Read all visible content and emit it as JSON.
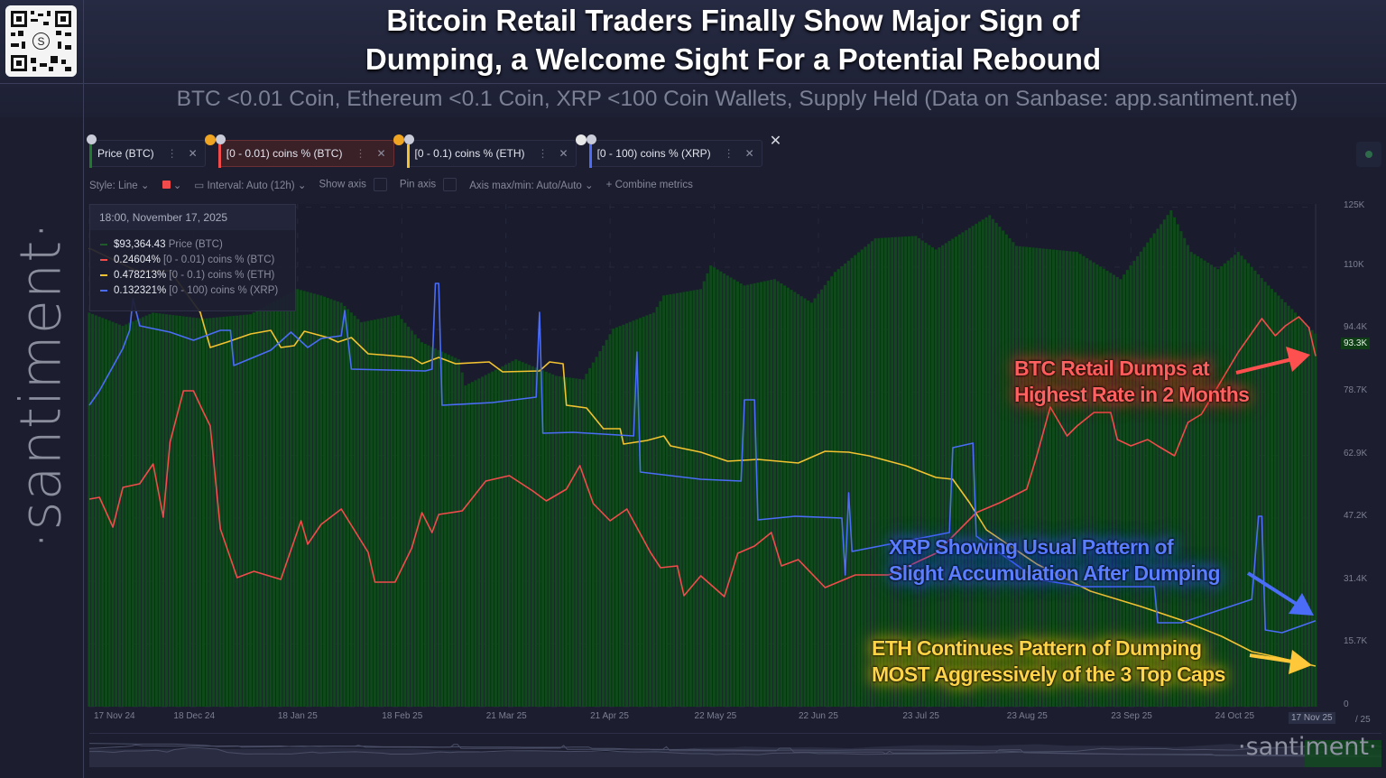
{
  "header": {
    "title_line1": "Bitcoin Retail Traders Finally Show Major Sign of",
    "title_line2": "Dumping, a Welcome Sight For a Potential Rebound",
    "subtitle": "BTC <0.01 Coin, Ethereum <0.1 Coin, XRP <100 Coin Wallets, Supply Held (Data on Sanbase: app.santiment.net)"
  },
  "brand": {
    "sidebar": "·santiment·",
    "watermark": "·santiment·"
  },
  "tabs": [
    {
      "label": "Price (BTC)",
      "color": "#1f7a2e"
    },
    {
      "label": "[0 - 0.01) coins % (BTC)",
      "color": "#f24b4b",
      "active": true
    },
    {
      "label": "[0 - 0.1) coins % (ETH)",
      "color": "#f2c230"
    },
    {
      "label": "[0 - 100) coins % (XRP)",
      "color": "#4a6cf7"
    }
  ],
  "toolbar": {
    "style": "Style: Line",
    "interval": "Interval: Auto (12h)",
    "show_axis": "Show axis",
    "pin_axis": "Pin axis",
    "axis_minmax": "Axis max/min: Auto/Auto",
    "combine": "Combine metrics"
  },
  "legend": {
    "date": "18:00, November 17, 2025",
    "rows": [
      {
        "value": "$93,364.43",
        "label": "Price (BTC)"
      },
      {
        "value": "0.24604%",
        "label": "[0 - 0.01) coins % (BTC)"
      },
      {
        "value": "0.478213%",
        "label": "[0 - 0.1) coins % (ETH)"
      },
      {
        "value": "0.132321%",
        "label": "[0 - 100) coins % (XRP)"
      }
    ]
  },
  "annotations": {
    "btc": [
      "BTC Retail Dumps at",
      "Highest Rate in 2 Months"
    ],
    "xrp": [
      "XRP Showing Usual Pattern of",
      "Slight Accumulation After Dumping"
    ],
    "eth": [
      "ETH Continues Pattern of Dumping",
      "MOST Aggressively of the 3 Top Caps"
    ]
  },
  "chart_data": {
    "type": "bar+line",
    "x_range": [
      "2024-11-17",
      "2025-11-17"
    ],
    "x_ticks": [
      {
        "date": "2024-11-17",
        "label": "17 Nov 24"
      },
      {
        "date": "2024-12-18",
        "label": "18 Dec 24"
      },
      {
        "date": "2025-01-18",
        "label": "18 Jan 25"
      },
      {
        "date": "2025-02-18",
        "label": "18 Feb 25"
      },
      {
        "date": "2025-03-21",
        "label": "21 Mar 25"
      },
      {
        "date": "2025-04-21",
        "label": "21 Apr 25"
      },
      {
        "date": "2025-05-22",
        "label": "22 May 25"
      },
      {
        "date": "2025-06-22",
        "label": "22 Jun 25"
      },
      {
        "date": "2025-07-23",
        "label": "23 Jul 25"
      },
      {
        "date": "2025-08-23",
        "label": "23 Aug 25"
      },
      {
        "date": "2025-09-23",
        "label": "23 Sep 25"
      },
      {
        "date": "2025-10-24",
        "label": "24 Oct 25"
      }
    ],
    "x_cursor_label": "17 Nov 25",
    "x_trailing_label": "/ 25",
    "y_ticks": [
      "125K",
      "110K",
      "94.4K",
      "78.7K",
      "62.9K",
      "47.2K",
      "31.4K",
      "15.7K",
      "0"
    ],
    "y_tick_values": [
      125000,
      110000,
      94400,
      78700,
      62900,
      47200,
      31400,
      15700,
      0
    ],
    "y_cursor_label": "93.3K",
    "ylim": [
      0,
      125800
    ],
    "series": [
      {
        "name": "Price (BTC)",
        "kind": "bar",
        "color": "#0f4a1b",
        "ylim": [
          0,
          125800
        ],
        "points": [
          [
            "2024-11-17",
            98600
          ],
          [
            "2024-11-27",
            95300
          ],
          [
            "2024-12-06",
            98600
          ],
          [
            "2024-12-21",
            97100
          ],
          [
            "2025-01-04",
            98200
          ],
          [
            "2025-01-18",
            104500
          ],
          [
            "2025-01-25",
            102900
          ],
          [
            "2025-01-31",
            101100
          ],
          [
            "2025-02-06",
            96200
          ],
          [
            "2025-02-17",
            98000
          ],
          [
            "2025-02-24",
            91200
          ],
          [
            "2025-03-07",
            86900
          ],
          [
            "2025-03-09",
            80400
          ],
          [
            "2025-03-24",
            86900
          ],
          [
            "2025-04-05",
            82800
          ],
          [
            "2025-04-13",
            81900
          ],
          [
            "2025-04-22",
            94600
          ],
          [
            "2025-05-04",
            98600
          ],
          [
            "2025-05-07",
            102900
          ],
          [
            "2025-05-18",
            104500
          ],
          [
            "2025-05-21",
            110400
          ],
          [
            "2025-05-31",
            105400
          ],
          [
            "2025-06-09",
            107000
          ],
          [
            "2025-06-20",
            101100
          ],
          [
            "2025-06-27",
            108800
          ],
          [
            "2025-07-09",
            117200
          ],
          [
            "2025-07-21",
            117800
          ],
          [
            "2025-07-27",
            114400
          ],
          [
            "2025-08-12",
            123000
          ],
          [
            "2025-08-20",
            115300
          ],
          [
            "2025-09-07",
            113800
          ],
          [
            "2025-09-20",
            107000
          ],
          [
            "2025-10-01",
            119600
          ],
          [
            "2025-10-05",
            124200
          ],
          [
            "2025-10-11",
            113800
          ],
          [
            "2025-10-19",
            109500
          ],
          [
            "2025-10-25",
            113800
          ],
          [
            "2025-11-03",
            105400
          ],
          [
            "2025-11-10",
            99500
          ],
          [
            "2025-11-17",
            93364.43
          ]
        ]
      },
      {
        "name": "[0 - 0.01) coins % (BTC)",
        "kind": "line",
        "color": "#f24b4b",
        "ylim": [
          0.2072,
          0.2629
        ],
        "points": [
          [
            "2024-11-17",
            0.2302
          ],
          [
            "2024-11-20",
            0.2304
          ],
          [
            "2024-11-24",
            0.2271
          ],
          [
            "2024-11-27",
            0.2315
          ],
          [
            "2024-12-02",
            0.2319
          ],
          [
            "2024-12-06",
            0.2341
          ],
          [
            "2024-12-09",
            0.2282
          ],
          [
            "2024-12-11",
            0.2365
          ],
          [
            "2024-12-15",
            0.2422
          ],
          [
            "2024-12-18",
            0.2422
          ],
          [
            "2024-12-21",
            0.2398
          ],
          [
            "2024-12-23",
            0.2383
          ],
          [
            "2024-12-26",
            0.2269
          ],
          [
            "2024-12-31",
            0.2215
          ],
          [
            "2025-01-05",
            0.2222
          ],
          [
            "2025-01-13",
            0.2213
          ],
          [
            "2025-01-19",
            0.2278
          ],
          [
            "2025-01-21",
            0.2252
          ],
          [
            "2025-01-25",
            0.2274
          ],
          [
            "2025-01-31",
            0.2291
          ],
          [
            "2025-02-08",
            0.2243
          ],
          [
            "2025-02-10",
            0.221
          ],
          [
            "2025-02-16",
            0.221
          ],
          [
            "2025-02-21",
            0.2248
          ],
          [
            "2025-02-24",
            0.2287
          ],
          [
            "2025-02-27",
            0.2265
          ],
          [
            "2025-03-01",
            0.2285
          ],
          [
            "2025-03-08",
            0.2289
          ],
          [
            "2025-03-15",
            0.2322
          ],
          [
            "2025-03-22",
            0.2328
          ],
          [
            "2025-03-29",
            0.2311
          ],
          [
            "2025-04-02",
            0.23
          ],
          [
            "2025-04-08",
            0.2313
          ],
          [
            "2025-04-12",
            0.2339
          ],
          [
            "2025-04-16",
            0.2297
          ],
          [
            "2025-04-21",
            0.2278
          ],
          [
            "2025-04-26",
            0.2291
          ],
          [
            "2025-05-03",
            0.2243
          ],
          [
            "2025-05-06",
            0.2226
          ],
          [
            "2025-05-11",
            0.2228
          ],
          [
            "2025-05-13",
            0.2195
          ],
          [
            "2025-05-18",
            0.2217
          ],
          [
            "2025-05-25",
            0.2194
          ],
          [
            "2025-05-29",
            0.2242
          ],
          [
            "2025-06-03",
            0.225
          ],
          [
            "2025-06-08",
            0.2265
          ],
          [
            "2025-06-11",
            0.2228
          ],
          [
            "2025-06-16",
            0.2235
          ],
          [
            "2025-06-24",
            0.2204
          ],
          [
            "2025-07-03",
            0.2218
          ],
          [
            "2025-07-13",
            0.2218
          ],
          [
            "2025-07-27",
            0.2242
          ],
          [
            "2025-08-08",
            0.2287
          ],
          [
            "2025-08-15",
            0.2298
          ],
          [
            "2025-08-23",
            0.2313
          ],
          [
            "2025-08-26",
            0.235
          ],
          [
            "2025-08-30",
            0.2404
          ],
          [
            "2025-09-04",
            0.2372
          ],
          [
            "2025-09-07",
            0.2383
          ],
          [
            "2025-09-12",
            0.2398
          ],
          [
            "2025-09-17",
            0.2398
          ],
          [
            "2025-09-19",
            0.2368
          ],
          [
            "2025-09-23",
            0.2361
          ],
          [
            "2025-09-28",
            0.2368
          ],
          [
            "2025-10-01",
            0.2361
          ],
          [
            "2025-10-06",
            0.235
          ],
          [
            "2025-10-10",
            0.2387
          ],
          [
            "2025-10-14",
            0.2396
          ],
          [
            "2025-10-25",
            0.2465
          ],
          [
            "2025-11-01",
            0.2502
          ],
          [
            "2025-11-05",
            0.2483
          ],
          [
            "2025-11-08",
            0.2494
          ],
          [
            "2025-11-12",
            0.2504
          ],
          [
            "2025-11-15",
            0.2492
          ],
          [
            "2025-11-17",
            0.24604
          ]
        ]
      },
      {
        "name": "[0 - 0.1) coins % (ETH)",
        "kind": "line",
        "color": "#f2c230",
        "ylim": [
          0.4557,
          0.7342
        ],
        "points": [
          [
            "2024-11-17",
            0.7097
          ],
          [
            "2024-12-01",
            0.6972
          ],
          [
            "2024-12-11",
            0.6972
          ],
          [
            "2024-12-20",
            0.6742
          ],
          [
            "2024-12-23",
            0.6547
          ],
          [
            "2024-12-28",
            0.6577
          ],
          [
            "2025-01-04",
            0.6622
          ],
          [
            "2025-01-10",
            0.6642
          ],
          [
            "2025-01-13",
            0.6547
          ],
          [
            "2025-01-17",
            0.6557
          ],
          [
            "2025-01-20",
            0.6637
          ],
          [
            "2025-01-27",
            0.6602
          ],
          [
            "2025-01-30",
            0.6577
          ],
          [
            "2025-02-03",
            0.6602
          ],
          [
            "2025-02-08",
            0.6512
          ],
          [
            "2025-02-15",
            0.6502
          ],
          [
            "2025-02-21",
            0.6492
          ],
          [
            "2025-02-24",
            0.6457
          ],
          [
            "2025-03-01",
            0.6492
          ],
          [
            "2025-03-06",
            0.6457
          ],
          [
            "2025-03-16",
            0.6467
          ],
          [
            "2025-03-20",
            0.6412
          ],
          [
            "2025-03-31",
            0.6417
          ],
          [
            "2025-04-03",
            0.6467
          ],
          [
            "2025-04-07",
            0.6457
          ],
          [
            "2025-04-08",
            0.6227
          ],
          [
            "2025-04-14",
            0.6212
          ],
          [
            "2025-04-19",
            0.6097
          ],
          [
            "2025-04-24",
            0.6097
          ],
          [
            "2025-04-25",
            0.6012
          ],
          [
            "2025-05-02",
            0.6032
          ],
          [
            "2025-05-07",
            0.6057
          ],
          [
            "2025-05-09",
            0.6002
          ],
          [
            "2025-05-18",
            0.5967
          ],
          [
            "2025-05-26",
            0.5917
          ],
          [
            "2025-06-04",
            0.5927
          ],
          [
            "2025-06-16",
            0.5907
          ],
          [
            "2025-06-24",
            0.5972
          ],
          [
            "2025-07-01",
            0.5967
          ],
          [
            "2025-07-07",
            0.5947
          ],
          [
            "2025-07-18",
            0.5892
          ],
          [
            "2025-07-27",
            0.5827
          ],
          [
            "2025-08-01",
            0.5817
          ],
          [
            "2025-08-06",
            0.5687
          ],
          [
            "2025-08-11",
            0.5537
          ],
          [
            "2025-08-26",
            0.5347
          ],
          [
            "2025-09-11",
            0.5197
          ],
          [
            "2025-09-26",
            0.5112
          ],
          [
            "2025-10-08",
            0.5037
          ],
          [
            "2025-10-20",
            0.4947
          ],
          [
            "2025-10-29",
            0.4862
          ],
          [
            "2025-11-03",
            0.4842
          ],
          [
            "2025-11-17",
            0.478213
          ]
        ]
      },
      {
        "name": "[0 - 100) coins % (XRP)",
        "kind": "line",
        "color": "#4a6cf7",
        "ylim": [
          0.1228,
          0.1785
        ],
        "points": [
          [
            "2024-11-17",
            0.1562
          ],
          [
            "2024-11-20",
            0.1578
          ],
          [
            "2024-11-27",
            0.1625
          ],
          [
            "2024-11-29",
            0.1645
          ],
          [
            "2024-11-30",
            0.168
          ],
          [
            "2024-12-02",
            0.165
          ],
          [
            "2024-12-11",
            0.1643
          ],
          [
            "2024-12-18",
            0.1634
          ],
          [
            "2024-12-26",
            0.1645
          ],
          [
            "2024-12-29",
            0.1645
          ],
          [
            "2024-12-30",
            0.1606
          ],
          [
            "2025-01-10",
            0.1623
          ],
          [
            "2025-01-16",
            0.1643
          ],
          [
            "2025-01-21",
            0.1626
          ],
          [
            "2025-01-25",
            0.1636
          ],
          [
            "2025-01-31",
            0.1639
          ],
          [
            "2025-02-01",
            0.1667
          ],
          [
            "2025-02-03",
            0.1602
          ],
          [
            "2025-02-25",
            0.16
          ],
          [
            "2025-02-27",
            0.1602
          ],
          [
            "2025-02-28",
            0.1697
          ],
          [
            "2025-03-01",
            0.1697
          ],
          [
            "2025-03-02",
            0.1562
          ],
          [
            "2025-03-17",
            0.1565
          ],
          [
            "2025-03-30",
            0.1571
          ],
          [
            "2025-03-31",
            0.1665
          ],
          [
            "2025-04-01",
            0.1531
          ],
          [
            "2025-04-10",
            0.1532
          ],
          [
            "2025-04-28",
            0.1528
          ],
          [
            "2025-04-29",
            0.1621
          ],
          [
            "2025-04-30",
            0.1488
          ],
          [
            "2025-05-18",
            0.148
          ],
          [
            "2025-05-30",
            0.1478
          ],
          [
            "2025-05-31",
            0.1568
          ],
          [
            "2025-06-03",
            0.1568
          ],
          [
            "2025-06-04",
            0.1435
          ],
          [
            "2025-06-15",
            0.1439
          ],
          [
            "2025-06-29",
            0.1437
          ],
          [
            "2025-06-30",
            0.1374
          ],
          [
            "2025-07-01",
            0.1465
          ],
          [
            "2025-07-02",
            0.14
          ],
          [
            "2025-07-31",
            0.1421
          ],
          [
            "2025-08-01",
            0.1515
          ],
          [
            "2025-08-07",
            0.152
          ],
          [
            "2025-08-08",
            0.1417
          ],
          [
            "2025-08-26",
            0.1369
          ],
          [
            "2025-09-09",
            0.1361
          ],
          [
            "2025-09-30",
            0.1361
          ],
          [
            "2025-10-01",
            0.1321
          ],
          [
            "2025-10-08",
            0.1321
          ],
          [
            "2025-10-29",
            0.1347
          ],
          [
            "2025-10-31",
            0.1439
          ],
          [
            "2025-11-01",
            0.1439
          ],
          [
            "2025-11-02",
            0.1313
          ],
          [
            "2025-11-07",
            0.131
          ],
          [
            "2025-11-17",
            0.132321
          ]
        ]
      }
    ],
    "grid": true,
    "legend_placement": "top-left"
  }
}
